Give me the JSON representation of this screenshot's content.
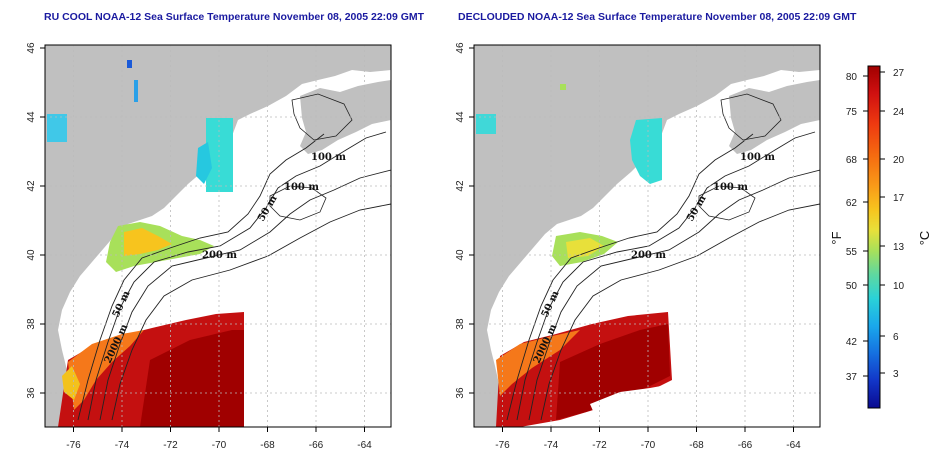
{
  "titles": {
    "left": "RU COOL NOAA-12 Sea Surface Temperature November 08, 2005 22:09 GMT",
    "right": "DECLOUDED NOAA-12 Sea Surface Temperature November 08, 2005 22:09 GMT"
  },
  "axes": {
    "lon_ticks": [
      "-76",
      "-74",
      "-72",
      "-70",
      "-68",
      "-66",
      "-64"
    ],
    "lat_ticks": [
      "46",
      "44",
      "42",
      "40",
      "38",
      "36"
    ]
  },
  "contour_labels": {
    "left": [
      "100 m",
      "100 m",
      "50 m",
      "200 m",
      "50 m",
      "2000 m"
    ],
    "right": [
      "100 m",
      "100 m",
      "50 m",
      "200 m",
      "50 m",
      "2000 m"
    ]
  },
  "colorbar": {
    "fahrenheit_ticks": [
      "80",
      "75",
      "68",
      "62",
      "55",
      "50",
      "42",
      "37"
    ],
    "celsius_ticks": [
      "27",
      "24",
      "20",
      "17",
      "13",
      "10",
      "6",
      "3"
    ],
    "fahrenheit_unit": "°F",
    "celsius_unit": "°C",
    "colors": [
      "#a00000",
      "#d01010",
      "#ee3a10",
      "#f56a10",
      "#f99a18",
      "#f7c41e",
      "#e8e03a",
      "#a8e05a",
      "#5ed8a0",
      "#2ad2d8",
      "#1aa8ec",
      "#1570e0",
      "#1236c8",
      "#0a0a90"
    ]
  },
  "colors": {
    "land": "#c0c0c0",
    "ocean": "#ffffff",
    "title": "#1a1aa0",
    "grid": "#bbbbbb"
  }
}
